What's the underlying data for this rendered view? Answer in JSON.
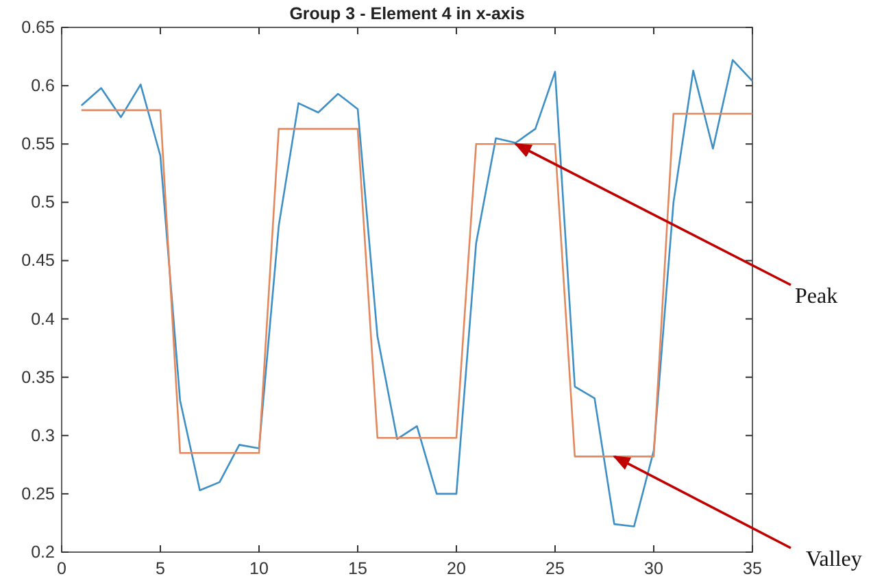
{
  "chart_data": {
    "type": "line",
    "title": "Group 3 - Element 4 in x-axis",
    "x": [
      1,
      2,
      3,
      4,
      5,
      6,
      7,
      8,
      9,
      10,
      11,
      12,
      13,
      14,
      15,
      16,
      17,
      18,
      19,
      20,
      21,
      22,
      23,
      24,
      25,
      26,
      27,
      28,
      29,
      30,
      31,
      32,
      33,
      34,
      35
    ],
    "series": [
      {
        "color": "#3d8fc6",
        "values": [
          0.583,
          0.598,
          0.573,
          0.601,
          0.54,
          0.33,
          0.253,
          0.26,
          0.292,
          0.289,
          0.48,
          0.585,
          0.577,
          0.593,
          0.58,
          0.385,
          0.297,
          0.308,
          0.25,
          0.25,
          0.465,
          0.555,
          0.551,
          0.563,
          0.612,
          0.342,
          0.332,
          0.224,
          0.222,
          0.287,
          0.5,
          0.613,
          0.546,
          0.622,
          0.604
        ]
      },
      {
        "color": "#e3875c",
        "values": [
          0.579,
          0.579,
          0.579,
          0.579,
          0.579,
          0.285,
          0.285,
          0.285,
          0.285,
          0.285,
          0.563,
          0.563,
          0.563,
          0.563,
          0.563,
          0.298,
          0.298,
          0.298,
          0.298,
          0.298,
          0.55,
          0.55,
          0.55,
          0.55,
          0.55,
          0.282,
          0.282,
          0.282,
          0.282,
          0.282,
          0.576,
          0.576,
          0.576,
          0.576,
          0.576
        ]
      }
    ],
    "xlim": [
      0,
      35
    ],
    "xticks": [
      0,
      5,
      10,
      15,
      20,
      25,
      30,
      35
    ],
    "ylim": [
      0.2,
      0.65
    ],
    "yticks": [
      0.2,
      0.25,
      0.3,
      0.35,
      0.4,
      0.45,
      0.5,
      0.55,
      0.6,
      0.65
    ],
    "grid": false,
    "marker": "none",
    "line_style": "solid",
    "annotations": [
      {
        "text": "Peak",
        "x": 23,
        "y": 0.55
      },
      {
        "text": "Valley",
        "x": 28,
        "y": 0.282
      }
    ]
  }
}
